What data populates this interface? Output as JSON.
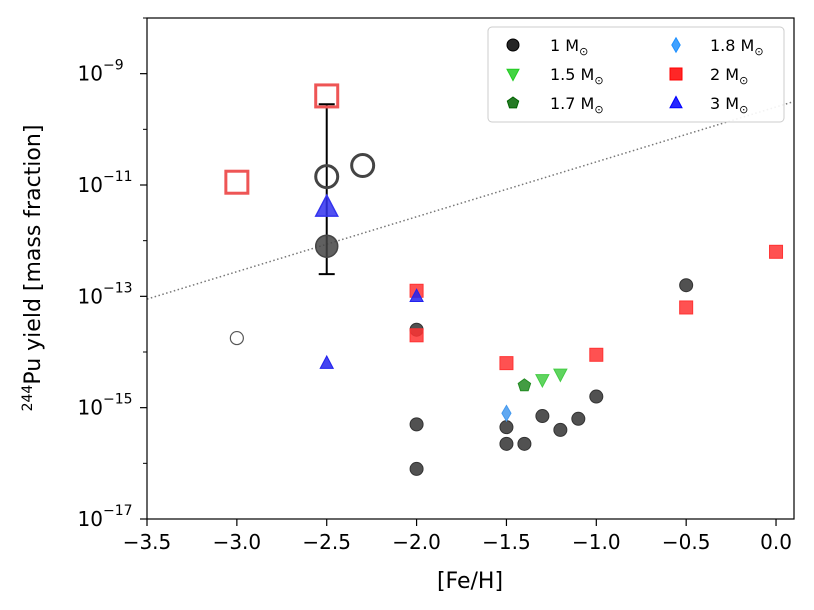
{
  "chart_data": {
    "type": "scatter",
    "xlabel": "[Fe/H]",
    "ylabel_sup": "244",
    "ylabel_main": "Pu yield [mass fraction]",
    "x_range": [
      -3.5,
      0.1
    ],
    "y_log_range": [
      -17,
      -8
    ],
    "x_ticks": [
      -3.5,
      -3.0,
      -2.5,
      -2.0,
      -1.5,
      -1.0,
      -0.5,
      0.0
    ],
    "x_tick_labels": [
      "−3.5",
      "−3.0",
      "−2.5",
      "−2.0",
      "−1.5",
      "−1.0",
      "−0.5",
      "0.0"
    ],
    "y_ticks": [
      -17,
      -15,
      -13,
      -11,
      -9
    ],
    "y_tick_labels": [
      "10",
      "10",
      "10",
      "10",
      "10"
    ],
    "y_tick_exponents": [
      "−17",
      "−15",
      "−13",
      "−11",
      "−9"
    ],
    "legend": {
      "placement": "top-right",
      "entries": [
        {
          "key": "m1",
          "label": "1 M",
          "marker": "circle",
          "color": "#000000"
        },
        {
          "key": "m18",
          "label": "1.8 M",
          "marker": "diamond",
          "color": "#1e90ff"
        },
        {
          "key": "m15",
          "label": "1.5 M",
          "marker": "triangle-down",
          "color": "#22cc22"
        },
        {
          "key": "m2",
          "label": "2 M",
          "marker": "square",
          "color": "#ff0000"
        },
        {
          "key": "m17",
          "label": "1.7 M",
          "marker": "pentagon",
          "color": "#006400"
        },
        {
          "key": "m3",
          "label": "3 M",
          "marker": "triangle-up",
          "color": "#0000ff"
        }
      ],
      "sun_symbol": "⊙"
    },
    "trend_line": {
      "style": "dotted",
      "color": "#777777",
      "points": [
        [
          -3.5,
          -13.05
        ],
        [
          0.1,
          -9.5
        ]
      ]
    },
    "series": [
      {
        "name": "1 M",
        "marker": "circle",
        "color": "#333333",
        "points": [
          [
            -2.0,
            -15.3
          ],
          [
            -2.0,
            -16.1
          ],
          [
            -2.0,
            -13.6
          ],
          [
            -1.5,
            -15.35
          ],
          [
            -1.5,
            -15.65
          ],
          [
            -1.4,
            -15.65
          ],
          [
            -1.3,
            -15.15
          ],
          [
            -1.2,
            -15.4
          ],
          [
            -1.1,
            -15.2
          ],
          [
            -1.0,
            -14.8
          ],
          [
            -0.5,
            -12.8
          ]
        ]
      },
      {
        "name": "1.5 M",
        "marker": "triangle-down",
        "color": "#44cc44",
        "points": [
          [
            -1.3,
            -14.5
          ],
          [
            -1.2,
            -14.4
          ]
        ]
      },
      {
        "name": "1.7 M",
        "marker": "pentagon",
        "color": "#228B22",
        "points": [
          [
            -1.4,
            -14.6
          ]
        ]
      },
      {
        "name": "1.8 M",
        "marker": "diamond",
        "color": "#4499ee",
        "points": [
          [
            -1.5,
            -15.1
          ]
        ]
      },
      {
        "name": "2 M",
        "marker": "square",
        "color": "#ff3333",
        "points": [
          [
            -2.0,
            -12.9
          ],
          [
            -2.0,
            -13.7
          ],
          [
            -1.5,
            -14.2
          ],
          [
            -1.0,
            -14.05
          ],
          [
            -0.5,
            -13.2
          ],
          [
            0.0,
            -12.2
          ]
        ]
      },
      {
        "name": "3 M",
        "marker": "triangle-up",
        "color": "#2222ee",
        "points": [
          [
            -2.0,
            -13.0
          ],
          [
            -2.5,
            -14.2
          ]
        ]
      }
    ],
    "large_points": [
      {
        "x": -3.0,
        "y": -10.95,
        "marker": "open-square",
        "color": "#ee5555"
      },
      {
        "x": -2.5,
        "y": -9.4,
        "marker": "open-square",
        "color": "#ee5555"
      },
      {
        "x": -2.5,
        "y": -10.85,
        "marker": "open-circle",
        "color": "#444444"
      },
      {
        "x": -2.3,
        "y": -10.65,
        "marker": "open-circle",
        "color": "#444444"
      },
      {
        "x": -2.5,
        "y": -11.4,
        "marker": "filled-triangle-up",
        "color": "#3333ee"
      },
      {
        "x": -2.5,
        "y": -12.1,
        "marker": "filled-circle",
        "color": "#444444"
      },
      {
        "x": -3.0,
        "y": -13.75,
        "marker": "small-open-circle",
        "color": "#555555"
      }
    ],
    "error_bar": {
      "x": -2.5,
      "y_low": -12.6,
      "y_high": -9.55
    }
  }
}
